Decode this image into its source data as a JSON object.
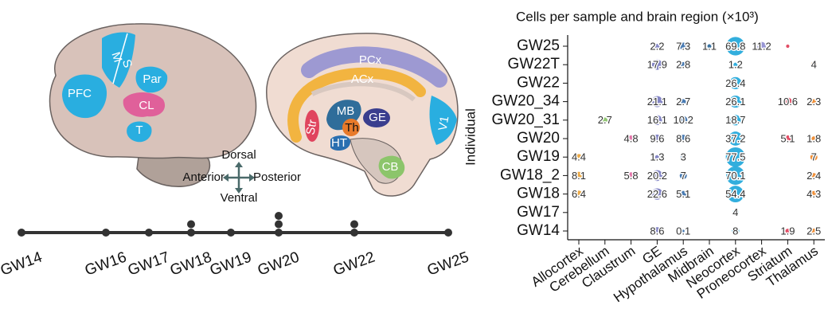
{
  "diagram": {
    "lateral_regions": [
      "PFC",
      "M",
      "S",
      "Par",
      "CL",
      "T"
    ],
    "medial_regions": [
      "PCx",
      "ACx",
      "MB",
      "GE",
      "Str",
      "Th",
      "HT",
      "V1",
      "CB"
    ],
    "orientation": {
      "dorsal": "Dorsal",
      "anterior": "Anterior",
      "posterior": "Posterior",
      "ventral": "Ventral"
    }
  },
  "timeline": {
    "labels": [
      "GW14",
      "GW16",
      "GW17",
      "GW18",
      "GW19",
      "GW20",
      "GW22",
      "GW25"
    ],
    "samples": [
      1,
      1,
      1,
      2,
      1,
      3,
      2,
      1
    ]
  },
  "chart_data": {
    "type": "bubble",
    "title": "Cells per sample and brain region (×10³)",
    "y_label": "Individual",
    "categories": [
      "Allocortex",
      "Cerebellum",
      "Claustrum",
      "GE",
      "Hypothalamus",
      "Midbrain",
      "Neocortex",
      "Proneocortex",
      "Striatum",
      "Thalamus"
    ],
    "colors": [
      "#eaa43c",
      "#8cc46c",
      "#e06aa2",
      "#7d80c2",
      "#3f74ae",
      "#2e6c9c",
      "#27aadb",
      "#9290d2",
      "#e0445e",
      "#ef8a2e"
    ],
    "rows": [
      "GW25",
      "GW22T",
      "GW22",
      "GW20_34",
      "GW20_31",
      "GW20",
      "GW19",
      "GW18_2",
      "GW18",
      "GW17",
      "GW14"
    ],
    "values": [
      [
        null,
        null,
        null,
        2.2,
        7.3,
        1.1,
        69.8,
        11.2,
        0.5,
        null
      ],
      [
        null,
        null,
        null,
        17.9,
        2.8,
        null,
        1.2,
        null,
        null,
        4
      ],
      [
        null,
        null,
        null,
        null,
        null,
        null,
        26.4,
        null,
        null,
        null
      ],
      [
        null,
        null,
        null,
        21.1,
        2.7,
        null,
        26.1,
        null,
        10.6,
        2.3
      ],
      [
        null,
        2.7,
        null,
        16.1,
        10.2,
        null,
        18.7,
        null,
        null,
        null
      ],
      [
        null,
        null,
        4.8,
        9.6,
        8.6,
        null,
        37.2,
        null,
        5.1,
        1.8
      ],
      [
        4.4,
        null,
        null,
        1.3,
        3,
        null,
        77.5,
        null,
        null,
        7
      ],
      [
        8.1,
        null,
        5.8,
        20.2,
        7,
        null,
        70.1,
        null,
        null,
        2.4
      ],
      [
        6.4,
        null,
        null,
        22.6,
        5.1,
        null,
        54.4,
        null,
        null,
        4.3
      ],
      [
        null,
        null,
        null,
        null,
        null,
        null,
        4,
        null,
        null,
        null
      ],
      [
        null,
        null,
        null,
        8.6,
        0.1,
        null,
        8,
        null,
        1.9,
        2.5
      ]
    ],
    "value_labels": [
      [
        null,
        null,
        null,
        "2.2",
        "7.3",
        "1.1",
        "69.8",
        "11.2",
        null,
        null
      ],
      [
        null,
        null,
        null,
        "17.9",
        "2.8",
        null,
        "1.2",
        null,
        null,
        "4"
      ],
      [
        null,
        null,
        null,
        null,
        null,
        null,
        "26.4",
        null,
        null,
        null
      ],
      [
        null,
        null,
        null,
        "21.1",
        "2.7",
        null,
        "26.1",
        null,
        "10.6",
        "2.3"
      ],
      [
        null,
        "2.7",
        null,
        "16.1",
        "10.2",
        null,
        "18.7",
        null,
        null,
        null
      ],
      [
        null,
        null,
        "4.8",
        "9.6",
        "8.6",
        null,
        "37.2",
        null,
        "5.1",
        "1.8"
      ],
      [
        "4.4",
        null,
        null,
        "1.3",
        "3",
        null,
        "77.5",
        null,
        null,
        "7"
      ],
      [
        "8.1",
        null,
        "5.8",
        "20.2",
        "7",
        null,
        "70.1",
        null,
        null,
        "2.4"
      ],
      [
        "6.4",
        null,
        null,
        "22.6",
        "5.1",
        null,
        "54.4",
        null,
        null,
        "4.3"
      ],
      [
        null,
        null,
        null,
        null,
        null,
        null,
        "4",
        null,
        null,
        null
      ],
      [
        null,
        null,
        null,
        "8.6",
        "0.1",
        null,
        "8",
        null,
        "1.9",
        "2.5"
      ]
    ]
  }
}
